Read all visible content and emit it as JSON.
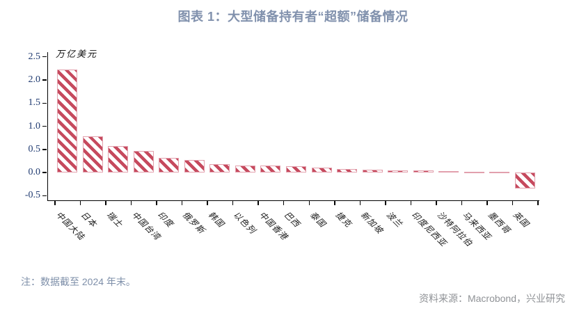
{
  "header": {
    "title": "图表 1：大型储备持有者“超额”储备情况"
  },
  "footnote": {
    "text": "注：数据截至 2024 年末。"
  },
  "source": {
    "text": "资料来源：Macrobond，兴业研究"
  },
  "chart_data": {
    "type": "bar",
    "title": "图表 1：大型储备持有者“超额”储备情况",
    "ylabel": "万亿美元",
    "xlabel": "",
    "categories": [
      "中国大陆",
      "日本",
      "瑞士",
      "中国台湾",
      "印度",
      "俄罗斯",
      "韩国",
      "以色列",
      "中国香港",
      "巴西",
      "泰国",
      "捷克",
      "新加坡",
      "波兰",
      "印度尼西亚",
      "沙特阿拉伯",
      "马来西亚",
      "墨西哥",
      "英国"
    ],
    "values": [
      2.23,
      0.79,
      0.58,
      0.47,
      0.31,
      0.27,
      0.18,
      0.15,
      0.15,
      0.14,
      0.1,
      0.07,
      0.06,
      0.05,
      0.05,
      0.03,
      0.02,
      0.02,
      -0.35
    ],
    "yticks": [
      2.5,
      2.0,
      1.5,
      1.0,
      0.5,
      0.0,
      -0.5
    ],
    "ylim": [
      -0.6,
      2.6
    ],
    "grid": false,
    "legend": "none",
    "bar_style": {
      "hatch": "diagonal-stripes",
      "stripe_color": "#c64a5e",
      "border_color": "#e2a0ad",
      "fill_color": "#ffffff"
    },
    "colors": {
      "title": "#8191ad",
      "y_tick_label": "#1f3a70",
      "axis": "#000000",
      "note": "#7e8fa9",
      "source": "#8f9296"
    }
  }
}
